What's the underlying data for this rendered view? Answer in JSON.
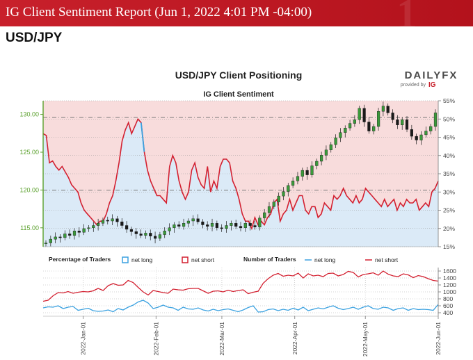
{
  "header": {
    "title": "IG Client Sentiment Report (Jun 1, 2022 4:01 PM -04:00)",
    "pair": "USD/JPY"
  },
  "brand": {
    "logo": "DAILYFX",
    "tagline": "provided by",
    "ig": "IG",
    "accent": "#c8202b"
  },
  "chart_data": [
    {
      "type": "line",
      "title": "USD/JPY Client Positioning",
      "subtitle": "IG Client Sentiment",
      "x_ticks": [
        "2022-Jan-01",
        "2022-Feb-01",
        "2022-Mar-01",
        "2022-Apr-01",
        "2022-May-01",
        "2022-Jun-01"
      ],
      "x_range": [
        "2021-12-15",
        "2022-06-01"
      ],
      "y_left": {
        "ticks": [
          "115.00",
          "120.00",
          "125.00",
          "130.00"
        ],
        "range": [
          112.5,
          131.8
        ],
        "color": "#5aa02c"
      },
      "y_right": {
        "ticks": [
          "15%",
          "20%",
          "25%",
          "30%",
          "35%",
          "40%",
          "45%",
          "50%",
          "55%"
        ],
        "range": [
          15,
          55
        ]
      },
      "reference_lines": {
        "price": 129.6,
        "net_long_pct": 30.5
      },
      "colors": {
        "net_long": "#3aa1e0",
        "net_short": "#d32030",
        "long_fill": "#dbeaf7",
        "short_fill": "#f8dcdc"
      },
      "series": [
        {
          "name": "USD/JPY price",
          "style": "candlestick",
          "values": [
            113.0,
            113.5,
            113.8,
            113.7,
            114.2,
            114.0,
            114.6,
            114.4,
            114.9,
            115.0,
            115.3,
            115.6,
            116.0,
            115.9,
            116.2,
            115.8,
            115.3,
            114.8,
            114.5,
            114.2,
            114.0,
            114.3,
            113.9,
            113.6,
            114.1,
            114.6,
            115.0,
            115.4,
            115.2,
            115.6,
            115.9,
            116.2,
            115.8,
            115.4,
            115.2,
            115.6,
            115.0,
            114.9,
            115.3,
            115.6,
            115.2,
            115.0,
            115.6,
            115.3,
            115.1,
            116.3,
            117.0,
            117.8,
            118.4,
            119.2,
            119.8,
            120.6,
            121.2,
            121.8,
            122.6,
            122.0,
            123.2,
            123.8,
            124.6,
            125.3,
            126.0,
            126.9,
            127.6,
            128.2,
            128.8,
            129.3,
            130.8,
            129.0,
            127.8,
            128.4,
            130.4,
            131.1,
            130.2,
            129.3,
            128.6,
            129.3,
            128.0,
            127.1,
            126.6,
            127.3,
            127.8,
            128.4,
            130.2
          ],
          "open": 112.9,
          "ticker": "USDJPY"
        },
        {
          "name": "net long",
          "unit": "%",
          "values": [
            46,
            45.5,
            38,
            38.5,
            37,
            36,
            37,
            35.5,
            34,
            32,
            31,
            30,
            27,
            25,
            24,
            23,
            22,
            21,
            22,
            22,
            24,
            27,
            29,
            33,
            38,
            44,
            47,
            49,
            46,
            48,
            50,
            49,
            41,
            36,
            33,
            31,
            29,
            29,
            28,
            27,
            37,
            40,
            38,
            33,
            30,
            28,
            30,
            36,
            38,
            34,
            32,
            31,
            37,
            30,
            33,
            31,
            37,
            39,
            39,
            38,
            33,
            31,
            28,
            24,
            22,
            22,
            20,
            23,
            21,
            22,
            21,
            23,
            24,
            27,
            28,
            22,
            24,
            25,
            28,
            25,
            27,
            29,
            29,
            25,
            24,
            26,
            26,
            23,
            24,
            27,
            26,
            25,
            29,
            28,
            29,
            31,
            29,
            28,
            27,
            29,
            27,
            28,
            31,
            30,
            29,
            28,
            27,
            26,
            28,
            26,
            27,
            28,
            25,
            27,
            26,
            28,
            27,
            27,
            28,
            25,
            26,
            27,
            26,
            30,
            31,
            33
          ]
        }
      ]
    },
    {
      "type": "line",
      "y_ticks": [
        "400",
        "600",
        "800",
        "1000",
        "1200",
        "1400",
        "1600"
      ],
      "y_range": [
        300,
        1700
      ],
      "legend": {
        "pct_title": "Percentage of Traders",
        "pct_long": "net long",
        "pct_short": "net short",
        "num_title": "Number of Traders",
        "num_long": "net long",
        "num_short": "net short"
      },
      "series": [
        {
          "name": "net short",
          "values": [
            730,
            760,
            890,
            980,
            970,
            1010,
            960,
            990,
            1010,
            1000,
            1030,
            1100,
            1040,
            1180,
            1240,
            1190,
            1200,
            1330,
            1270,
            1130,
            1000,
            910,
            1040,
            1010,
            980,
            960,
            1080,
            1060,
            1050,
            1090,
            1100,
            1100,
            1030,
            960,
            1020,
            1030,
            1000,
            1050,
            1010,
            1040,
            1060,
            950,
            990,
            1020,
            1250,
            1380,
            1480,
            1530,
            1450,
            1480,
            1460,
            1540,
            1400,
            1520,
            1460,
            1480,
            1440,
            1530,
            1540,
            1460,
            1500,
            1590,
            1560,
            1430,
            1500,
            1520,
            1550,
            1480,
            1600,
            1510,
            1460,
            1440,
            1520,
            1490,
            1410,
            1470,
            1440,
            1380,
            1330,
            1310
          ]
        },
        {
          "name": "net long",
          "values": [
            540,
            570,
            560,
            600,
            520,
            560,
            580,
            470,
            500,
            530,
            460,
            440,
            450,
            480,
            430,
            520,
            480,
            560,
            620,
            710,
            760,
            680,
            520,
            560,
            620,
            560,
            540,
            470,
            560,
            510,
            500,
            540,
            480,
            450,
            500,
            460,
            490,
            510,
            470,
            430,
            480,
            550,
            600,
            420,
            430,
            490,
            510,
            460,
            500,
            470,
            530,
            480,
            560,
            460,
            500,
            540,
            510,
            560,
            600,
            530,
            490,
            520,
            560,
            500,
            560,
            600,
            520,
            500,
            560,
            540,
            470,
            520,
            540,
            470,
            520,
            490,
            500,
            490,
            470,
            640
          ]
        }
      ]
    }
  ]
}
